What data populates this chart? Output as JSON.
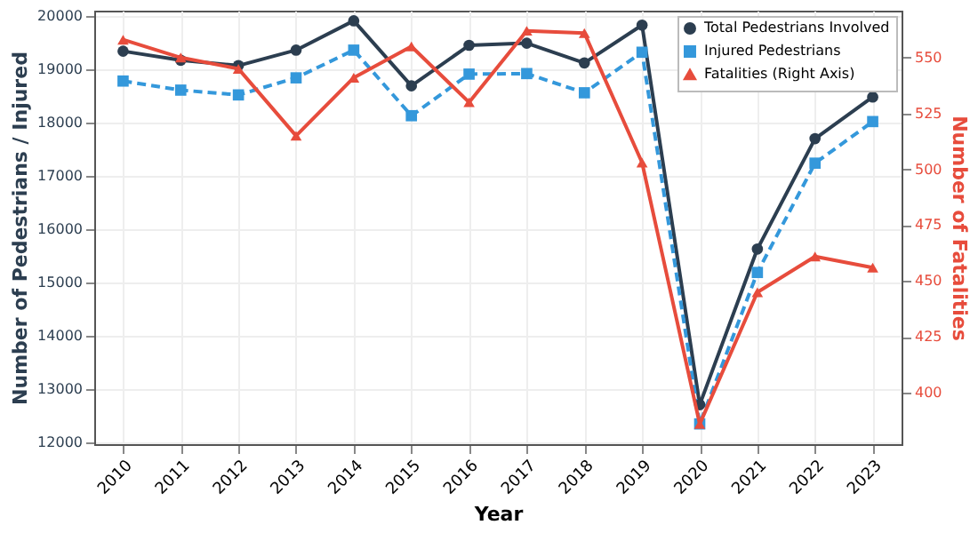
{
  "chart_data": {
    "type": "line",
    "xlabel": "Year",
    "ylabel": "Number of Pedestrians / Injured",
    "y2label": "Number of Fatalities",
    "categories": [
      "2010",
      "2011",
      "2012",
      "2013",
      "2014",
      "2015",
      "2016",
      "2017",
      "2018",
      "2019",
      "2020",
      "2021",
      "2022",
      "2023"
    ],
    "series": [
      {
        "name": "Total Pedestrians Involved",
        "color": "#2c3e50",
        "marker": "circle",
        "line_style": "solid",
        "values": [
          19340,
          19170,
          19070,
          19360,
          19910,
          18690,
          19450,
          19490,
          19120,
          19830,
          12710,
          15630,
          17700,
          18480
        ]
      },
      {
        "name": "Injured Pedestrians",
        "color": "#3498db",
        "marker": "square",
        "line_style": "dashed",
        "values": [
          18780,
          18610,
          18520,
          18840,
          19360,
          18130,
          18910,
          18920,
          18560,
          19320,
          12350,
          15190,
          17240,
          18020
        ]
      },
      {
        "name": "Fatalities (Right Axis)",
        "color": "#e74c3c",
        "marker": "triangle",
        "line_style": "solid",
        "axis": "y2",
        "values": [
          558,
          550,
          545,
          515,
          541,
          555,
          530,
          562,
          561,
          503,
          386,
          445,
          461,
          456
        ]
      }
    ],
    "ylim": [
      11970,
      20100
    ],
    "yticks": [
      12000,
      13000,
      14000,
      15000,
      16000,
      17000,
      18000,
      19000,
      20000
    ],
    "y2lim": [
      377,
      571
    ],
    "y2ticks": [
      400,
      425,
      450,
      475,
      500,
      525,
      550
    ],
    "grid": true,
    "legend": "top right"
  }
}
